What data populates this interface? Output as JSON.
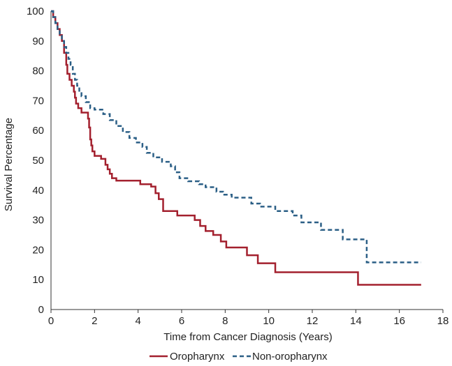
{
  "chart_data": {
    "type": "line",
    "xlabel": "Time from Cancer Diagnosis (Years)",
    "ylabel": "Survival Percentage",
    "xlim": [
      0,
      18
    ],
    "ylim": [
      0,
      100
    ],
    "x_ticks": [
      0,
      2,
      4,
      6,
      8,
      10,
      12,
      14,
      16,
      18
    ],
    "y_ticks": [
      0,
      10,
      20,
      30,
      40,
      50,
      60,
      70,
      80,
      90,
      100
    ],
    "grid": false,
    "legend_position": "bottom",
    "series": [
      {
        "name": "Oropharynx",
        "color": "#A3202E",
        "style": "solid",
        "step": true,
        "points": [
          [
            0,
            100
          ],
          [
            0.1,
            98
          ],
          [
            0.2,
            96
          ],
          [
            0.3,
            94
          ],
          [
            0.4,
            92
          ],
          [
            0.5,
            90
          ],
          [
            0.6,
            86
          ],
          [
            0.7,
            82
          ],
          [
            0.75,
            79
          ],
          [
            0.85,
            77
          ],
          [
            0.95,
            75
          ],
          [
            1.05,
            73
          ],
          [
            1.1,
            71
          ],
          [
            1.15,
            69
          ],
          [
            1.25,
            67.5
          ],
          [
            1.4,
            66
          ],
          [
            1.7,
            64
          ],
          [
            1.75,
            61
          ],
          [
            1.8,
            57
          ],
          [
            1.85,
            55
          ],
          [
            1.9,
            53
          ],
          [
            2.0,
            51.5
          ],
          [
            2.3,
            50.5
          ],
          [
            2.5,
            48.5
          ],
          [
            2.6,
            47
          ],
          [
            2.7,
            45.5
          ],
          [
            2.8,
            44
          ],
          [
            3.0,
            43.2
          ],
          [
            4.1,
            42
          ],
          [
            4.6,
            41.2
          ],
          [
            4.8,
            39
          ],
          [
            4.95,
            37
          ],
          [
            5.15,
            33
          ],
          [
            5.8,
            31.5
          ],
          [
            6.6,
            30
          ],
          [
            6.85,
            28
          ],
          [
            7.1,
            26.3
          ],
          [
            7.45,
            25
          ],
          [
            7.8,
            22.8
          ],
          [
            8.05,
            20.8
          ],
          [
            9.0,
            18.2
          ],
          [
            9.5,
            15.5
          ],
          [
            10.3,
            12.5
          ],
          [
            14.1,
            8.3
          ],
          [
            17.0,
            8.3
          ]
        ]
      },
      {
        "name": "Non-oropharynx",
        "color": "#2B5F86",
        "style": "dashed",
        "step": true,
        "points": [
          [
            0,
            100
          ],
          [
            0.1,
            98
          ],
          [
            0.2,
            96
          ],
          [
            0.3,
            94
          ],
          [
            0.4,
            92
          ],
          [
            0.5,
            90
          ],
          [
            0.6,
            88
          ],
          [
            0.7,
            86
          ],
          [
            0.8,
            84
          ],
          [
            0.9,
            82
          ],
          [
            1.0,
            79
          ],
          [
            1.1,
            77
          ],
          [
            1.2,
            75
          ],
          [
            1.3,
            73
          ],
          [
            1.4,
            71.5
          ],
          [
            1.6,
            69.5
          ],
          [
            1.8,
            67.5
          ],
          [
            2.0,
            67
          ],
          [
            2.4,
            65.5
          ],
          [
            2.7,
            63.5
          ],
          [
            3.0,
            61.5
          ],
          [
            3.3,
            59.5
          ],
          [
            3.6,
            57.5
          ],
          [
            3.9,
            56
          ],
          [
            4.2,
            54.5
          ],
          [
            4.4,
            52.5
          ],
          [
            4.7,
            51
          ],
          [
            5.1,
            49.5
          ],
          [
            5.5,
            48
          ],
          [
            5.7,
            46
          ],
          [
            5.9,
            44
          ],
          [
            6.3,
            43
          ],
          [
            6.8,
            42
          ],
          [
            7.1,
            41
          ],
          [
            7.6,
            39.5
          ],
          [
            7.9,
            38.5
          ],
          [
            8.3,
            37.5
          ],
          [
            9.2,
            35.5
          ],
          [
            9.6,
            34.5
          ],
          [
            10.3,
            33
          ],
          [
            11.1,
            31.5
          ],
          [
            11.5,
            29.2
          ],
          [
            12.4,
            26.7
          ],
          [
            13.4,
            23.5
          ],
          [
            14.5,
            15.8
          ],
          [
            17.0,
            15.8
          ]
        ]
      }
    ]
  }
}
